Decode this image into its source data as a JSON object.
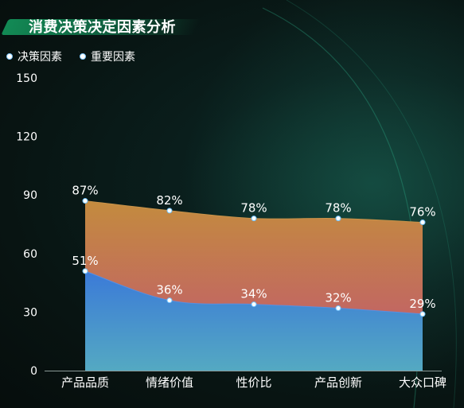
{
  "title": "消费决策决定因素分析",
  "chart_data": {
    "type": "area",
    "categories": [
      "产品品质",
      "情绪价值",
      "性价比",
      "产品创新",
      "大众口碑"
    ],
    "series": [
      {
        "name": "决策因素",
        "values": [
          51,
          36,
          34,
          32,
          29
        ],
        "labels": [
          "51%",
          "36%",
          "34%",
          "32%",
          "29%"
        ],
        "color_top": "#3b7ad8",
        "color_bottom": "#54a9c2"
      },
      {
        "name": "重要因素",
        "values": [
          87,
          82,
          78,
          78,
          76
        ],
        "labels": [
          "87%",
          "82%",
          "78%",
          "78%",
          "76%"
        ],
        "color_top": "#c38b3e",
        "color_bottom": "#c25574"
      }
    ],
    "stacked": true,
    "yticks": [
      0,
      30,
      60,
      90,
      120,
      150
    ],
    "ylim": [
      0,
      150
    ],
    "legend_position": "top-left",
    "grid": false
  }
}
